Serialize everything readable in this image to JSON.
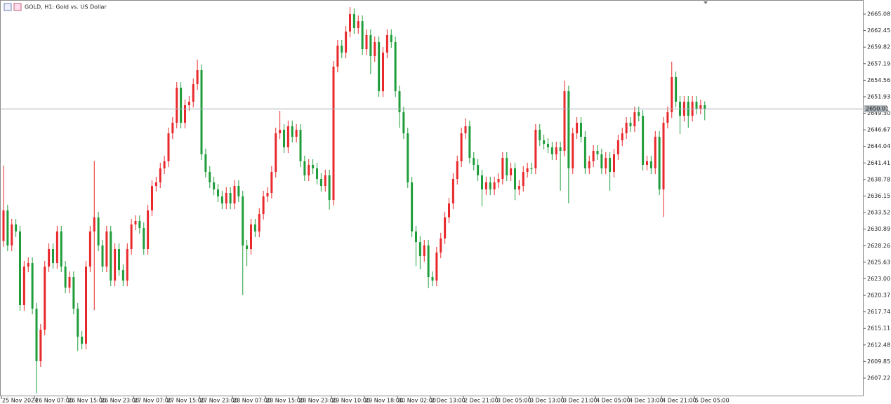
{
  "chart_data": {
    "type": "candlestick",
    "title": "GOLD, H1: Gold vs. US Dollar",
    "up_color": "#e8282b",
    "down_color": "#1f9d3a",
    "last_price_line_color": "#a9b1b8",
    "ylim": [
      2604.32,
      2667.09
    ],
    "yticks": [
      2665.08,
      2662.45,
      2659.82,
      2657.19,
      2654.56,
      2651.93,
      {
        "value": 2649.3,
        "label": "2649.30"
      },
      2646.67,
      2644.04,
      2641.41,
      2638.78,
      2636.15,
      2633.52,
      2630.89,
      2628.26,
      2625.63,
      {
        "value": 2623,
        "label": "2623.00"
      },
      2620.37,
      2617.74,
      2615.11,
      2612.48,
      2609.85,
      2607.22
    ],
    "categories": [
      "25 Nov 2024",
      null,
      null,
      null,
      null,
      null,
      null,
      null,
      "26 Nov 07:00",
      null,
      null,
      null,
      null,
      null,
      null,
      null,
      "26 Nov 15:00",
      null,
      null,
      null,
      null,
      null,
      null,
      null,
      "26 Nov 23:00",
      null,
      null,
      null,
      null,
      null,
      null,
      null,
      "27 Nov 07:00",
      null,
      null,
      null,
      null,
      null,
      null,
      null,
      "27 Nov 15:00",
      null,
      null,
      null,
      null,
      null,
      null,
      null,
      "27 Nov 23:00",
      null,
      null,
      null,
      null,
      null,
      null,
      null,
      "28 Nov 07:00",
      null,
      null,
      null,
      null,
      null,
      null,
      null,
      "28 Nov 15:00",
      null,
      null,
      null,
      null,
      null,
      null,
      null,
      "28 Nov 23:00",
      null,
      null,
      null,
      null,
      null,
      null,
      null,
      "29 Nov 10:00",
      null,
      null,
      null,
      null,
      null,
      null,
      null,
      "29 Nov 18:00",
      null,
      null,
      null,
      null,
      null,
      null,
      null,
      "30 Nov 02:00",
      null,
      null,
      null,
      null,
      null,
      null,
      null,
      "2 Dec 13:00",
      null,
      null,
      null,
      null,
      null,
      null,
      null,
      "2 Dec 21:00",
      null,
      null,
      null,
      null,
      null,
      null,
      null,
      "3 Dec 05:00",
      null,
      null,
      null,
      null,
      null,
      null,
      null,
      "3 Dec 13:00",
      null,
      null,
      null,
      null,
      null,
      null,
      null,
      "3 Dec 21:00",
      null,
      null,
      null,
      null,
      null,
      null,
      null,
      "4 Dec 05:00",
      null,
      null,
      null,
      null,
      null,
      null,
      null,
      "4 Dec 13:00",
      null,
      null,
      null,
      null,
      null,
      null,
      null,
      "4 Dec 21:00",
      null,
      null,
      null,
      null,
      null,
      null,
      null,
      "5 Dec 05:00",
      null,
      null
    ],
    "open": [
      2629.0,
      2633.86,
      2628.29,
      2631.63,
      2630.52,
      2618.81,
      2624.94,
      2625.5,
      2618.25,
      2609.89,
      2614.91,
      2624.94,
      2627.73,
      2625.5,
      2630.52,
      2624.94,
      2621.59,
      2623.27,
      2618.25,
      2613.79,
      2612.67,
      2624.94,
      2630.52,
      2632.75,
      2628.29,
      2624.94,
      2630.52,
      2622.71,
      2627.73,
      2624.38,
      2622.71,
      2627.73,
      2631.63,
      2632.19,
      2631.07,
      2627.73,
      2633.86,
      2637.76,
      2638.32,
      2640.55,
      2641.67,
      2646.12,
      2647.8,
      2653.37,
      2647.8,
      2650.59,
      2651.14,
      2653.93,
      2656.16,
      2642.78,
      2639.99,
      2638.32,
      2637.2,
      2636.09,
      2634.97,
      2636.65,
      2634.97,
      2637.76,
      2636.09,
      2628.29,
      2627.73,
      2631.63,
      2630.52,
      2633.3,
      2636.09,
      2636.65,
      2639.99,
      2646.12,
      2646.68,
      2643.89,
      2647.24,
      2645.57,
      2646.68,
      2641.67,
      2639.44,
      2641.11,
      2640.55,
      2638.88,
      2637.76,
      2639.44,
      2635.53,
      2656.72,
      2660.06,
      2658.95,
      2662.29,
      2665.08,
      2662.85,
      2663.96,
      2659.5,
      2661.74,
      2658.39,
      2660.62,
      2652.81,
      2658.95,
      2661.74,
      2660.62,
      2652.81,
      2649.47,
      2646.12,
      2638.32,
      2630.52,
      2628.84,
      2626.61,
      2628.29,
      2623.27,
      2622.71,
      2627.17,
      2629.41,
      2632.75,
      2634.97,
      2638.88,
      2641.67,
      2646.12,
      2647.24,
      2642.22,
      2641.11,
      2639.44,
      2637.2,
      2638.32,
      2637.2,
      2638.32,
      2638.88,
      2642.22,
      2639.44,
      2640.55,
      2637.2,
      2637.76,
      2639.99,
      2640.55,
      2640.55,
      2646.68,
      2645.01,
      2644.45,
      2643.89,
      2642.78,
      2643.89,
      2643.34,
      2652.81,
      2640.55,
      2646.12,
      2647.8,
      2645.57,
      2640.55,
      2641.67,
      2643.34,
      2642.78,
      2640.55,
      2642.22,
      2639.99,
      2642.78,
      2645.01,
      2646.12,
      2647.8,
      2647.24,
      2649.47,
      2648.91,
      2641.11,
      2641.67,
      2640.55,
      2645.57,
      2637.2,
      2647.8,
      2649.47,
      2655.05,
      2651.14,
      2648.91,
      2651.14,
      2648.91,
      2651.14,
      2650.03,
      2650.59
    ],
    "high": [
      2641.0,
      2634.76,
      2632.53,
      2632.53,
      2631.42,
      2625.84,
      2626.4,
      2626.4,
      2619.15,
      2615.81,
      2625.84,
      2628.63,
      2628.63,
      2631.42,
      2631.42,
      2625.84,
      2624.17,
      2624.17,
      2619.15,
      2614.69,
      2625.84,
      2631.42,
      2641.7,
      2633.65,
      2629.19,
      2631.42,
      2631.42,
      2628.63,
      2628.63,
      2625.28,
      2628.63,
      2632.53,
      2633.09,
      2633.09,
      2631.97,
      2634.76,
      2638.66,
      2639.22,
      2641.45,
      2642.57,
      2647.02,
      2648.7,
      2654.27,
      2654.27,
      2651.49,
      2652.04,
      2654.83,
      2657.83,
      2657.06,
      2643.68,
      2640.89,
      2639.22,
      2638.1,
      2636.99,
      2637.55,
      2637.55,
      2638.66,
      2638.66,
      2636.99,
      2629.19,
      2632.53,
      2632.53,
      2634.2,
      2636.99,
      2637.55,
      2640.89,
      2647.02,
      2649.7,
      2647.58,
      2648.14,
      2648.14,
      2647.58,
      2647.58,
      2642.57,
      2642.01,
      2642.01,
      2641.45,
      2639.78,
      2640.34,
      2640.34,
      2657.62,
      2660.96,
      2660.96,
      2663.19,
      2666.2,
      2665.98,
      2664.86,
      2664.86,
      2662.64,
      2662.64,
      2661.52,
      2661.52,
      2659.85,
      2662.64,
      2662.64,
      2661.52,
      2653.71,
      2650.37,
      2647.02,
      2639.22,
      2631.42,
      2629.74,
      2629.19,
      2629.19,
      2624.17,
      2628.07,
      2630.31,
      2633.65,
      2635.87,
      2639.78,
      2642.57,
      2647.02,
      2648.5,
      2648.14,
      2643.12,
      2642.01,
      2640.34,
      2639.22,
      2639.22,
      2639.22,
      2639.78,
      2643.12,
      2643.12,
      2641.45,
      2641.45,
      2638.66,
      2640.89,
      2641.45,
      2641.45,
      2647.58,
      2647.58,
      2645.91,
      2645.35,
      2644.79,
      2644.79,
      2644.79,
      2654.5,
      2653.71,
      2647.02,
      2648.7,
      2648.7,
      2646.47,
      2642.57,
      2644.24,
      2644.24,
      2643.68,
      2643.12,
      2643.12,
      2643.68,
      2645.91,
      2647.02,
      2648.7,
      2648.7,
      2650.37,
      2650.37,
      2649.81,
      2642.57,
      2642.57,
      2646.47,
      2646.47,
      2648.7,
      2650.37,
      2657.5,
      2655.95,
      2652.04,
      2652.04,
      2652.04,
      2652.04,
      2652.04,
      2651.49,
      2651.2
    ],
    "low": [
      2628.1,
      2627.39,
      2627.39,
      2629.62,
      2617.91,
      2617.91,
      2624.04,
      2617.35,
      2604.8,
      2608.99,
      2614.01,
      2624.04,
      2624.6,
      2624.6,
      2624.04,
      2620.69,
      2620.69,
      2617.35,
      2611.5,
      2611.77,
      2611.77,
      2624.04,
      2618.0,
      2627.39,
      2624.04,
      2624.04,
      2621.81,
      2621.81,
      2623.48,
      2621.81,
      2621.81,
      2626.83,
      2630.73,
      2630.17,
      2626.83,
      2626.83,
      2632.96,
      2636.86,
      2637.42,
      2639.65,
      2640.77,
      2645.22,
      2646.9,
      2646.9,
      2646.9,
      2649.69,
      2650.24,
      2653.03,
      2641.88,
      2639.09,
      2637.42,
      2636.3,
      2635.19,
      2634.07,
      2634.07,
      2634.07,
      2634.07,
      2635.19,
      2620.4,
      2625.0,
      2626.83,
      2629.62,
      2629.62,
      2632.4,
      2635.19,
      2635.75,
      2639.09,
      2645.22,
      2642.99,
      2642.99,
      2644.67,
      2644.67,
      2640.77,
      2638.54,
      2638.54,
      2639.65,
      2637.98,
      2636.86,
      2636.86,
      2634.0,
      2634.63,
      2655.82,
      2658.05,
      2658.05,
      2661.39,
      2661.95,
      2661.95,
      2658.6,
      2658.6,
      2655.5,
      2657.49,
      2651.91,
      2651.91,
      2658.05,
      2659.72,
      2651.91,
      2647.0,
      2645.22,
      2637.42,
      2629.62,
      2625.0,
      2624.5,
      2625.71,
      2621.5,
      2621.81,
      2621.81,
      2626.27,
      2628.51,
      2631.85,
      2634.07,
      2637.98,
      2640.77,
      2645.22,
      2641.32,
      2640.21,
      2638.54,
      2634.5,
      2636.3,
      2636.3,
      2636.3,
      2637.42,
      2637.98,
      2638.54,
      2638.54,
      2635.5,
      2636.3,
      2636.86,
      2639.09,
      2639.65,
      2639.65,
      2644.11,
      2643.55,
      2642.99,
      2641.88,
      2641.88,
      2637.0,
      2642.44,
      2635.0,
      2639.65,
      2645.22,
      2644.67,
      2639.65,
      2639.65,
      2640.77,
      2641.88,
      2639.65,
      2639.65,
      2637.0,
      2639.09,
      2641.88,
      2644.11,
      2645.22,
      2646.34,
      2646.34,
      2648.01,
      2640.21,
      2640.21,
      2639.65,
      2639.65,
      2636.3,
      2632.8,
      2646.9,
      2648.57,
      2650.24,
      2646.0,
      2648.01,
      2647.0,
      2648.01,
      2649.13,
      2649.13,
      2648.2
    ],
    "close": [
      2633.86,
      2628.29,
      2631.63,
      2630.52,
      2618.81,
      2624.94,
      2625.5,
      2618.25,
      2609.89,
      2614.91,
      2624.94,
      2627.73,
      2625.5,
      2630.52,
      2624.94,
      2621.59,
      2623.27,
      2618.25,
      2613.79,
      2612.67,
      2624.94,
      2630.52,
      2632.75,
      2628.29,
      2624.94,
      2630.52,
      2622.71,
      2627.73,
      2624.38,
      2622.71,
      2627.73,
      2631.63,
      2632.19,
      2631.07,
      2627.73,
      2633.86,
      2637.76,
      2638.32,
      2640.55,
      2641.67,
      2646.12,
      2647.8,
      2653.37,
      2647.8,
      2650.59,
      2651.14,
      2653.93,
      2656.16,
      2642.78,
      2639.99,
      2638.32,
      2637.2,
      2636.09,
      2634.97,
      2636.65,
      2634.97,
      2637.76,
      2636.09,
      2628.29,
      2627.73,
      2631.63,
      2630.52,
      2633.3,
      2636.09,
      2636.65,
      2639.99,
      2646.12,
      2646.68,
      2643.89,
      2647.24,
      2645.57,
      2646.68,
      2641.67,
      2639.44,
      2641.11,
      2640.55,
      2638.88,
      2637.76,
      2639.44,
      2635.53,
      2656.72,
      2660.06,
      2658.95,
      2662.29,
      2665.08,
      2662.85,
      2663.96,
      2659.5,
      2661.74,
      2658.39,
      2660.62,
      2652.81,
      2658.95,
      2661.74,
      2660.62,
      2652.81,
      2649.47,
      2646.12,
      2638.32,
      2630.52,
      2628.84,
      2626.61,
      2628.29,
      2623.27,
      2622.71,
      2627.17,
      2629.41,
      2632.75,
      2634.97,
      2638.88,
      2641.67,
      2646.12,
      2647.24,
      2642.22,
      2641.11,
      2639.44,
      2637.2,
      2638.32,
      2637.2,
      2638.32,
      2638.88,
      2642.22,
      2639.44,
      2640.55,
      2637.2,
      2637.76,
      2639.99,
      2640.55,
      2640.55,
      2646.68,
      2645.01,
      2644.45,
      2643.89,
      2642.78,
      2643.89,
      2643.34,
      2652.81,
      2640.55,
      2646.12,
      2647.8,
      2645.57,
      2640.55,
      2641.67,
      2643.34,
      2642.78,
      2640.55,
      2642.22,
      2639.99,
      2642.78,
      2645.01,
      2646.12,
      2647.8,
      2647.24,
      2649.47,
      2648.91,
      2641.11,
      2641.67,
      2640.55,
      2645.57,
      2637.2,
      2647.8,
      2649.47,
      2655.05,
      2651.14,
      2648.91,
      2651.14,
      2648.91,
      2651.14,
      2650.03,
      2650.59,
      2650.01
    ]
  }
}
